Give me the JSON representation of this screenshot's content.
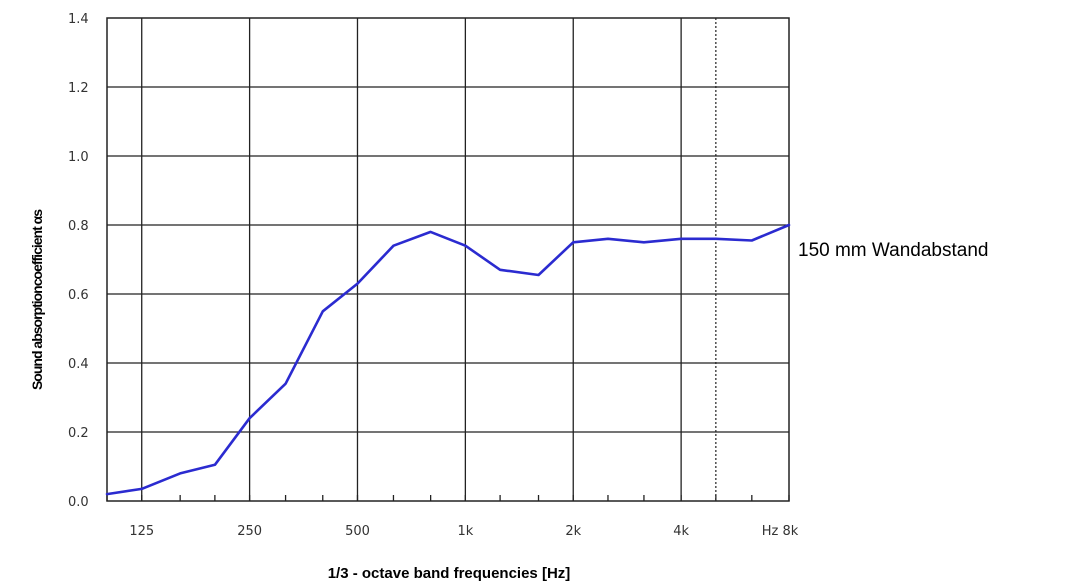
{
  "chart_data": {
    "type": "line",
    "xlabel": "1/3 - octave band frequencies [Hz]",
    "ylabel": "Sound absorptioncoefficient αs",
    "ylim": [
      0.0,
      1.4
    ],
    "y_ticks": [
      "0.0",
      "0.2",
      "0.4",
      "0.6",
      "0.8",
      "1.0",
      "1.2",
      "1.4"
    ],
    "x_tick_labels": [
      "125",
      "250",
      "500",
      "1k",
      "2k",
      "4k",
      "Hz 8k"
    ],
    "grid": true,
    "series": [
      {
        "name": "150 mm Wandabstand",
        "color": "#2b2bd0",
        "x": [
          100,
          125,
          160,
          200,
          250,
          315,
          400,
          500,
          630,
          800,
          1000,
          1250,
          1600,
          2000,
          2500,
          3150,
          4000,
          5000,
          6300,
          8000
        ],
        "values": [
          0.02,
          0.035,
          0.08,
          0.105,
          0.24,
          0.34,
          0.55,
          0.63,
          0.74,
          0.78,
          0.74,
          0.67,
          0.655,
          0.75,
          0.76,
          0.75,
          0.76,
          0.76,
          0.755,
          0.8
        ]
      }
    ]
  }
}
